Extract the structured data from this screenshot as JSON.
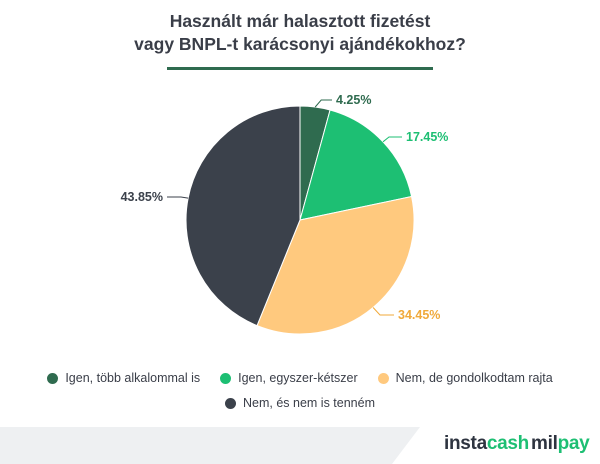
{
  "chart_data": {
    "type": "pie",
    "title_lines": [
      "Használt már halasztott fizetést",
      "vagy BNPL-t karácsonyi ajándékokhoz?"
    ],
    "slices": [
      {
        "label": "Igen, több alkalommal is",
        "value": 4.25,
        "value_label": "4.25%",
        "color": "#2f6b4f",
        "label_color": "#2f6b4f"
      },
      {
        "label": "Igen, egyszer-kétszer",
        "value": 17.45,
        "value_label": "17.45%",
        "color": "#1dbf73",
        "label_color": "#1dbf73"
      },
      {
        "label": "Nem, de gondolkodtam rajta",
        "value": 34.45,
        "value_label": "34.45%",
        "color": "#ffc97e",
        "label_color": "#f0a93a"
      },
      {
        "label": "Nem, és nem is tenném",
        "value": 43.85,
        "value_label": "43.85%",
        "color": "#3b414b",
        "label_color": "#3b414b"
      }
    ],
    "start_angle": "12 o'clock",
    "direction": "clockwise",
    "legend_position": "bottom"
  },
  "brand": {
    "logo1_part1": "insta",
    "logo1_part2": "cash",
    "logo2_part1": "mil",
    "logo2_part2": "pay"
  },
  "colors": {
    "title_rule": "#2f6b4f",
    "footer_band": "#eef0f2",
    "pie_stroke": "#ffffff"
  }
}
